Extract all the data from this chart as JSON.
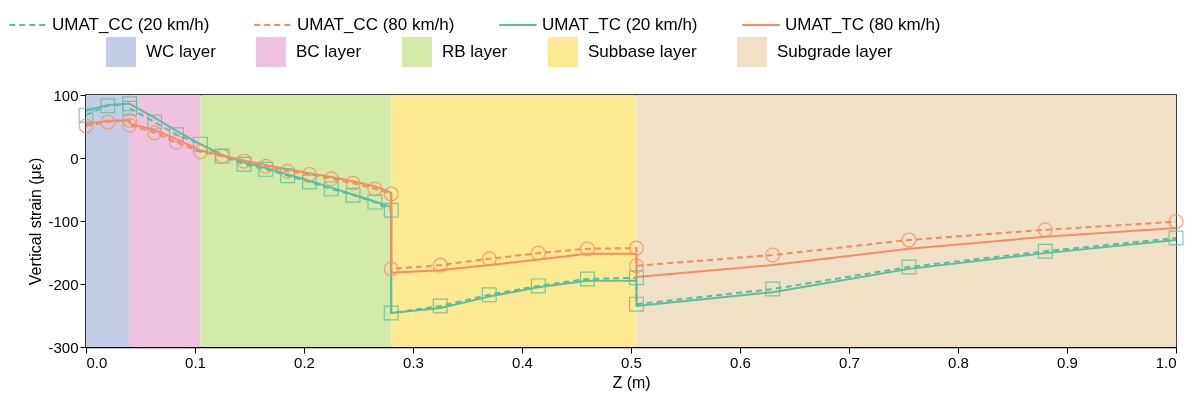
{
  "chart_data": {
    "type": "line",
    "xlabel": "Z (m)",
    "ylabel": "Vertical strain (με)",
    "xlim": [
      0,
      1
    ],
    "ylim": [
      -300,
      100
    ],
    "xticks": [
      {
        "value": 0,
        "label": "0.0"
      },
      0.1,
      0.2,
      0.3,
      0.4,
      0.5,
      0.6,
      0.7,
      0.8,
      0.9,
      {
        "value": 1,
        "label": "1.0"
      }
    ],
    "yticks": [
      -300,
      -200,
      -100,
      0,
      100
    ],
    "grid": false,
    "legend": "top",
    "series": [
      {
        "name": "UMAT_CC (20 km/h)",
        "color": "#5bbf9f",
        "marker": "square",
        "line_style": "dashed",
        "x": [
          0,
          0.02,
          0.04,
          0.04,
          0.063,
          0.083,
          0.105,
          0.125,
          0.145,
          0.165,
          0.185,
          0.205,
          0.225,
          0.245,
          0.265,
          0.28,
          0.28,
          0.325,
          0.37,
          0.415,
          0.46,
          0.505,
          0.505,
          0.63,
          0.755,
          0.88,
          1.0
        ],
        "values": [
          68,
          83,
          86,
          79,
          57,
          37,
          22,
          3,
          -10,
          -18,
          -28,
          -38,
          -49,
          -59,
          -70,
          -83,
          -246,
          -235,
          -217,
          -203,
          -192,
          -190,
          -232,
          -208,
          -173,
          -148,
          -127
        ]
      },
      {
        "name": "UMAT_CC (80 km/h)",
        "color": "#f98b60",
        "marker": "circle",
        "line_style": "dashed",
        "x": [
          0,
          0.02,
          0.04,
          0.04,
          0.063,
          0.083,
          0.105,
          0.125,
          0.145,
          0.165,
          0.185,
          0.205,
          0.225,
          0.245,
          0.265,
          0.28,
          0.28,
          0.325,
          0.37,
          0.415,
          0.46,
          0.505,
          0.505,
          0.63,
          0.755,
          0.88,
          1.0
        ],
        "values": [
          51,
          57,
          60,
          52,
          40,
          25,
          10,
          3,
          -5,
          -13,
          -21,
          -26,
          -33,
          -40,
          -49,
          -57,
          -176,
          -170,
          -160,
          -151,
          -144,
          -143,
          -171,
          -154,
          -130,
          -114,
          -101
        ]
      },
      {
        "name": "UMAT_TC (20 km/h)",
        "color": "#5bbf9f",
        "marker": "none",
        "line_style": "solid",
        "x": [
          0,
          0.02,
          0.04,
          0.063,
          0.083,
          0.105,
          0.125,
          0.145,
          0.165,
          0.185,
          0.205,
          0.225,
          0.245,
          0.265,
          0.28,
          0.28,
          0.325,
          0.37,
          0.415,
          0.46,
          0.505,
          0.505,
          0.63,
          0.755,
          0.88,
          1.0
        ],
        "values": [
          75,
          84,
          86,
          64,
          43,
          22,
          5,
          -7,
          -16,
          -26,
          -36,
          -47,
          -58,
          -69,
          -78,
          -246,
          -238,
          -220,
          -205,
          -195,
          -195,
          -235,
          -213,
          -176,
          -151,
          -130
        ]
      },
      {
        "name": "UMAT_TC (80 km/h)",
        "color": "#f98b60",
        "marker": "none",
        "line_style": "solid",
        "x": [
          0,
          0.02,
          0.04,
          0.04,
          0.063,
          0.083,
          0.105,
          0.125,
          0.145,
          0.165,
          0.185,
          0.205,
          0.225,
          0.245,
          0.265,
          0.28,
          0.28,
          0.325,
          0.37,
          0.415,
          0.46,
          0.505,
          0.505,
          0.63,
          0.755,
          0.88,
          1.0
        ],
        "values": [
          54,
          59,
          60,
          55,
          44,
          30,
          12,
          4,
          -4,
          -11,
          -18,
          -24,
          -30,
          -37,
          -45,
          -55,
          -182,
          -178,
          -170,
          -161,
          -152,
          -152,
          -189,
          -170,
          -144,
          -125,
          -111
        ]
      }
    ],
    "bands": [
      {
        "axis": "x",
        "from": 0,
        "to": 0.04,
        "label": "WC layer",
        "color": "#c5cde6"
      },
      {
        "axis": "x",
        "from": 0.04,
        "to": 0.105,
        "label": "BC layer",
        "color": "#efc3df"
      },
      {
        "axis": "x",
        "from": 0.105,
        "to": 0.28,
        "label": "RB layer",
        "color": "#d4eaa9"
      },
      {
        "axis": "x",
        "from": 0.28,
        "to": 0.505,
        "label": "Subbase layer",
        "color": "#fde991"
      },
      {
        "axis": "x",
        "from": 0.505,
        "to": 1.0,
        "label": "Subgrade layer",
        "color": "#f0e0c6"
      }
    ]
  }
}
